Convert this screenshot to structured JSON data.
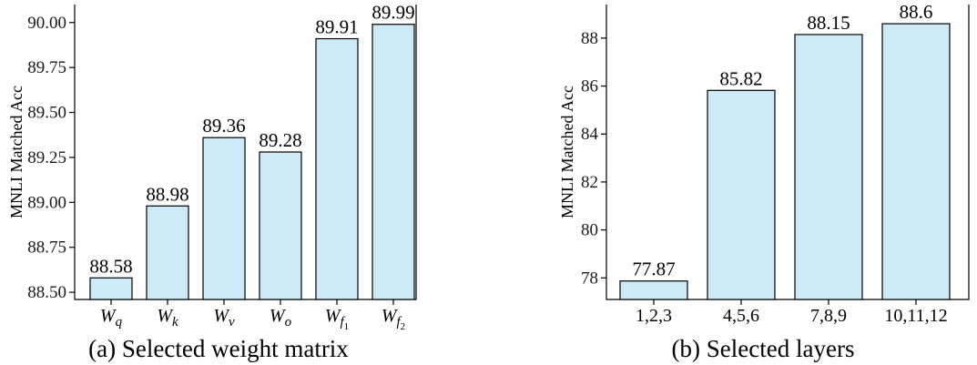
{
  "chart_data": [
    {
      "type": "bar",
      "caption": "(a) Selected weight matrix",
      "ylabel": "MNLI Matched Acc",
      "categories": [
        {
          "base": "W",
          "sub": "q",
          "subsub": ""
        },
        {
          "base": "W",
          "sub": "k",
          "subsub": ""
        },
        {
          "base": "W",
          "sub": "v",
          "subsub": ""
        },
        {
          "base": "W",
          "sub": "o",
          "subsub": ""
        },
        {
          "base": "W",
          "sub": "f",
          "subsub": "1"
        },
        {
          "base": "W",
          "sub": "f",
          "subsub": "2"
        }
      ],
      "values": [
        88.58,
        88.98,
        89.36,
        89.28,
        89.91,
        89.99
      ],
      "value_labels": [
        "88.58",
        "88.98",
        "89.36",
        "89.28",
        "89.91",
        "89.99"
      ],
      "yticks": [
        88.5,
        88.75,
        89.0,
        89.25,
        89.5,
        89.75,
        90.0
      ],
      "ytick_labels": [
        "88.50",
        "88.75",
        "89.00",
        "89.25",
        "89.50",
        "89.75",
        "90.00"
      ],
      "ylim": [
        88.46,
        90.1
      ],
      "grid": false,
      "bar_color": "#cdeaf8"
    },
    {
      "type": "bar",
      "caption": "(b) Selected layers",
      "ylabel": "MNLI Matched Acc",
      "categories": [
        "1,2,3",
        "4,5,6",
        "7,8,9",
        "10,11,12"
      ],
      "values": [
        77.87,
        85.82,
        88.15,
        88.6
      ],
      "value_labels": [
        "77.87",
        "85.82",
        "88.15",
        "88.6"
      ],
      "yticks": [
        78,
        80,
        82,
        84,
        86,
        88
      ],
      "ytick_labels": [
        "78",
        "80",
        "82",
        "84",
        "86",
        "88"
      ],
      "ylim": [
        77.1,
        89.4
      ],
      "grid": false,
      "bar_color": "#cdeaf8"
    }
  ]
}
